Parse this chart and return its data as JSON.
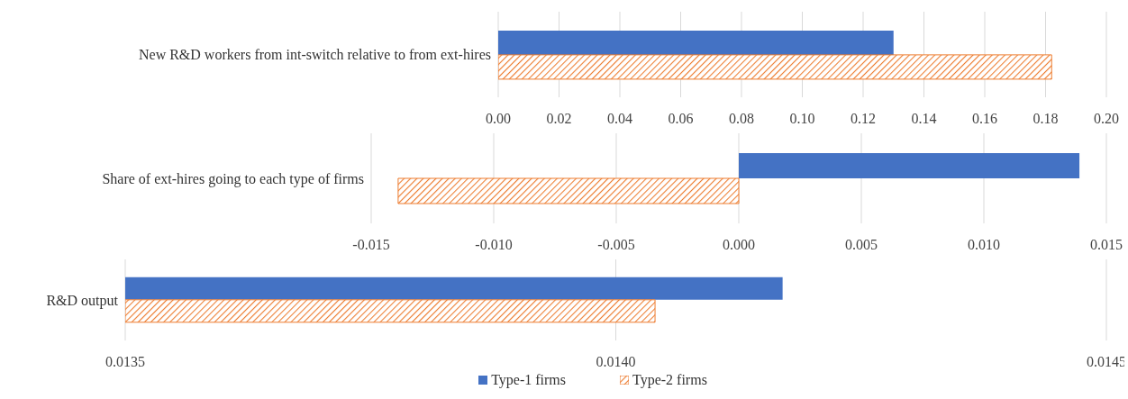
{
  "chart_data": [
    {
      "type": "bar",
      "orientation": "horizontal",
      "categories": [
        "New R&D workers from int-switch relative to from ext-hires"
      ],
      "series": [
        {
          "color": "#4472c4",
          "values": [
            0.13
          ]
        },
        {
          "color": "#ed7d31",
          "values": [
            0.182
          ]
        }
      ],
      "xlim": [
        0,
        0.2
      ],
      "xticks": [
        {
          "value": 0,
          "label": "0.00"
        },
        {
          "value": 0.02,
          "label": "0.02"
        },
        {
          "value": 0.04,
          "label": "0.04"
        },
        {
          "value": 0.06,
          "label": "0.06"
        },
        {
          "value": 0.08,
          "label": "0.08"
        },
        {
          "value": 0.1,
          "label": "0.10"
        },
        {
          "value": 0.12,
          "label": "0.12"
        },
        {
          "value": 0.14,
          "label": "0.14"
        },
        {
          "value": 0.16,
          "label": "0.16"
        },
        {
          "value": 0.18,
          "label": "0.18"
        },
        {
          "value": 0.2,
          "label": "0.20"
        }
      ],
      "grid": "x",
      "legend": false
    },
    {
      "type": "bar",
      "orientation": "horizontal",
      "categories": [
        "Share of ext-hires going to each type of firms"
      ],
      "series": [
        {
          "color": "#4472c4",
          "values": [
            0.0139
          ]
        },
        {
          "color": "#ed7d31",
          "values": [
            -0.0139
          ]
        }
      ],
      "xlim": [
        -0.015,
        0.015
      ],
      "xticks": [
        {
          "value": -0.015,
          "label": "-0.015"
        },
        {
          "value": -0.01,
          "label": "-0.010"
        },
        {
          "value": -0.005,
          "label": "-0.005"
        },
        {
          "value": 0,
          "label": "0.000"
        },
        {
          "value": 0.005,
          "label": "0.005"
        },
        {
          "value": 0.01,
          "label": "0.010"
        },
        {
          "value": 0.015,
          "label": "0.015"
        }
      ],
      "grid": "x",
      "legend": false
    },
    {
      "type": "bar",
      "orientation": "horizontal",
      "categories": [
        "R&D output"
      ],
      "series": [
        {
          "name": "Type-1 firms",
          "color": "#4472c4",
          "values": [
            0.01417
          ]
        },
        {
          "name": "Type-2 firms",
          "color": "#ed7d31",
          "values": [
            0.01404
          ]
        }
      ],
      "xlim": [
        0.0135,
        0.0145
      ],
      "xticks": [
        {
          "value": 0.0135,
          "label": "0.0135"
        },
        {
          "value": 0.014,
          "label": "0.0140"
        },
        {
          "value": 0.0145,
          "label": "0.0145"
        }
      ],
      "grid": "x",
      "legend": "bottom"
    }
  ]
}
